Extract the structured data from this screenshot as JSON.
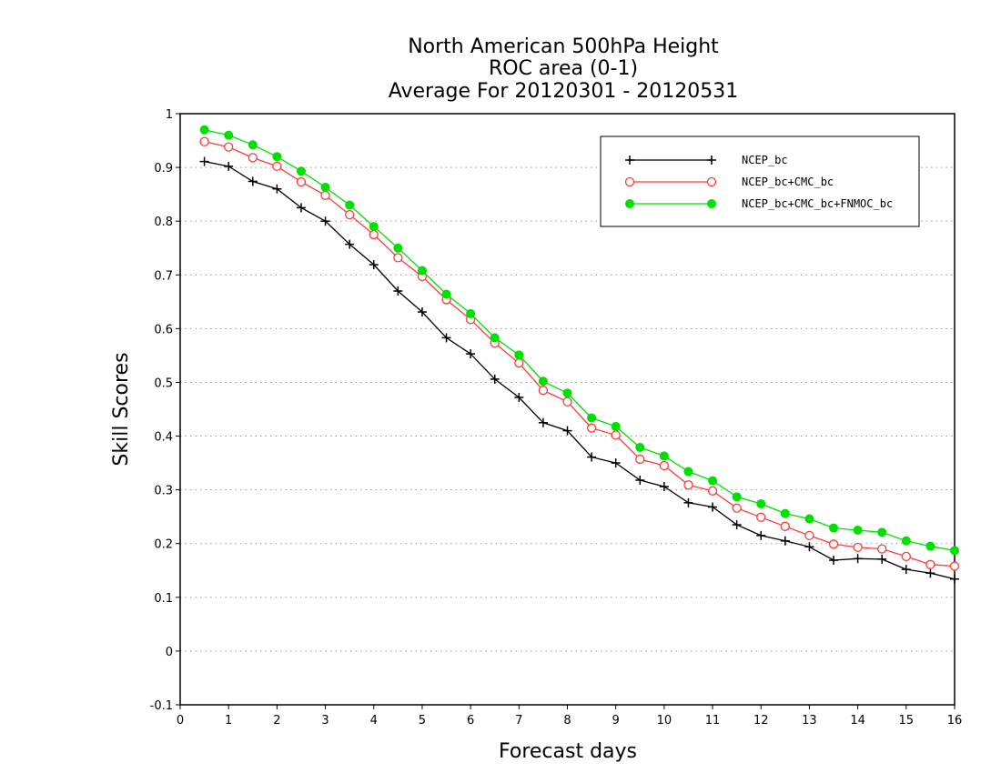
{
  "chart_data": {
    "type": "line",
    "title": [
      "North American 500hPa Height",
      "ROC area (0-1)",
      "Average For 20120301 - 20120531"
    ],
    "xlabel": "Forecast days",
    "ylabel": "Skill Scores",
    "xlim": [
      0,
      16
    ],
    "ylim": [
      -0.1,
      1
    ],
    "xticks": [
      0,
      1,
      2,
      3,
      4,
      5,
      6,
      7,
      8,
      9,
      10,
      11,
      12,
      13,
      14,
      15,
      16
    ],
    "yticks": [
      -0.1,
      0,
      0.1,
      0.2,
      0.3,
      0.4,
      0.5,
      0.6,
      0.7,
      0.8,
      0.9,
      1
    ],
    "ytick_labels": [
      "-0.1",
      "0",
      "0.1",
      "0.2",
      "0.3",
      "0.4",
      "0.5",
      "0.6",
      "0.7",
      "0.8",
      "0.9",
      "1"
    ],
    "grid": "horizontal-dotted",
    "legend_position": "top-right",
    "x": [
      0.5,
      1,
      1.5,
      2,
      2.5,
      3,
      3.5,
      4,
      4.5,
      5,
      5.5,
      6,
      6.5,
      7,
      7.5,
      8,
      8.5,
      9,
      9.5,
      10,
      10.5,
      11,
      11.5,
      12,
      12.5,
      13,
      13.5,
      14,
      14.5,
      15,
      15.5,
      16
    ],
    "series": [
      {
        "name": "NCEP_bc",
        "color": "#000000",
        "marker": "plus",
        "values": [
          0.911,
          0.902,
          0.874,
          0.86,
          0.825,
          0.8,
          0.757,
          0.719,
          0.67,
          0.631,
          0.583,
          0.553,
          0.506,
          0.472,
          0.425,
          0.41,
          0.361,
          0.35,
          0.318,
          0.306,
          0.276,
          0.268,
          0.235,
          0.215,
          0.205,
          0.194,
          0.169,
          0.172,
          0.171,
          0.152,
          0.145,
          0.134
        ]
      },
      {
        "name": "NCEP_bc+CMC_bc",
        "color": "#ff3a3a",
        "marker": "open-circle",
        "values": [
          0.948,
          0.938,
          0.918,
          0.902,
          0.873,
          0.848,
          0.812,
          0.775,
          0.732,
          0.697,
          0.654,
          0.617,
          0.573,
          0.536,
          0.485,
          0.464,
          0.415,
          0.402,
          0.357,
          0.345,
          0.309,
          0.298,
          0.266,
          0.249,
          0.232,
          0.215,
          0.199,
          0.193,
          0.19,
          0.176,
          0.161,
          0.158
        ]
      },
      {
        "name": "NCEP_bc+CMC_bc+FNMOC_bc",
        "color": "#00e000",
        "marker": "filled-circle",
        "values": [
          0.97,
          0.96,
          0.942,
          0.92,
          0.893,
          0.863,
          0.83,
          0.79,
          0.75,
          0.708,
          0.664,
          0.628,
          0.583,
          0.551,
          0.502,
          0.48,
          0.434,
          0.418,
          0.379,
          0.363,
          0.334,
          0.317,
          0.287,
          0.274,
          0.256,
          0.246,
          0.229,
          0.225,
          0.221,
          0.205,
          0.195,
          0.187
        ]
      }
    ]
  }
}
